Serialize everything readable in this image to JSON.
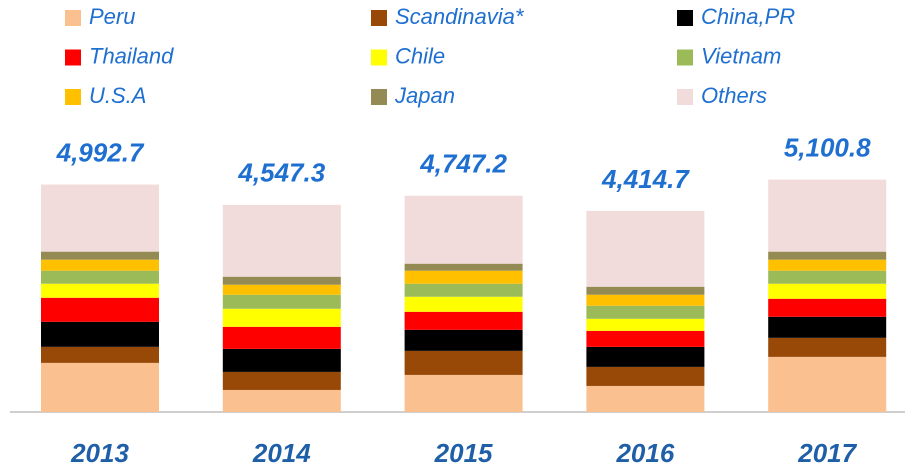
{
  "chart_data": {
    "type": "stacked_bar",
    "categories": [
      "2013",
      "2014",
      "2015",
      "2016",
      "2017"
    ],
    "series": [
      {
        "name": "Peru",
        "color": "#fac090",
        "values": [
          1078,
          484,
          814,
          572,
          1210
        ]
      },
      {
        "name": "Scandinavia*",
        "color": "#984807",
        "values": [
          352,
          396,
          528,
          418,
          418
        ]
      },
      {
        "name": "China,PR",
        "color": "#000000",
        "values": [
          550,
          506,
          462,
          440,
          462
        ]
      },
      {
        "name": "Thailand",
        "color": "#ff0000",
        "values": [
          528,
          484,
          396,
          352,
          396
        ]
      },
      {
        "name": "Chile",
        "color": "#ffff00",
        "values": [
          308,
          396,
          330,
          264,
          330
        ]
      },
      {
        "name": "Vietnam",
        "color": "#9bbb59",
        "values": [
          286,
          308,
          286,
          286,
          286
        ]
      },
      {
        "name": "U.S.A",
        "color": "#ffc000",
        "values": [
          242,
          220,
          286,
          242,
          242
        ]
      },
      {
        "name": "Japan",
        "color": "#948a54",
        "values": [
          176,
          176,
          154,
          176,
          176
        ]
      },
      {
        "name": "Others",
        "color": "#f2dcdb",
        "values": [
          1472.7,
          1577.3,
          1491.2,
          1664.7,
          1580.8
        ]
      }
    ],
    "totals": [
      4992.7,
      4547.3,
      4747.2,
      4414.7,
      5100.8
    ],
    "total_labels": [
      "4,992.7",
      "4,547.3",
      "4,747.2",
      "4,414.7",
      "5,100.8"
    ],
    "ylim": [
      0,
      5400
    ]
  }
}
